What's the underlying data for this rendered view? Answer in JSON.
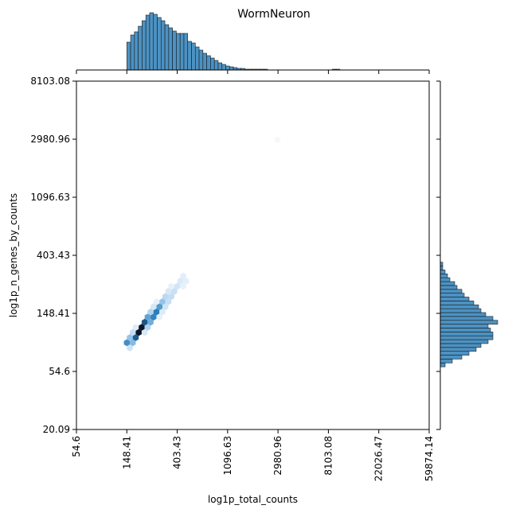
{
  "chart_data": {
    "type": "hexbin-joint",
    "title": "WormNeuron",
    "xlabel": "log1p_total_counts",
    "ylabel": "log1p_n_genes_by_counts",
    "x_scale": "log",
    "y_scale": "log",
    "xlim": [
      54.6,
      59874.14
    ],
    "ylim": [
      20.09,
      8103.08
    ],
    "x_ticks": [
      "54.6",
      "148.41",
      "403.43",
      "1096.63",
      "2980.96",
      "8103.08",
      "22026.47",
      "59874.14"
    ],
    "y_ticks": [
      "20.09",
      "54.6",
      "148.41",
      "403.43",
      "1096.63",
      "2980.96",
      "8103.08"
    ],
    "color": "#1f77b4",
    "hist_color": "#4c92c3",
    "x_marginal": {
      "bin_lo": 5.0,
      "bin_width": 0.0755,
      "counts": [
        35,
        44,
        48,
        55,
        62,
        69,
        72,
        70,
        66,
        62,
        57,
        53,
        49,
        46,
        46,
        46,
        36,
        34,
        29,
        25,
        21,
        18,
        15,
        12,
        9,
        7,
        5,
        4,
        3,
        2,
        2,
        1,
        1,
        1,
        1,
        1,
        1,
        0,
        0,
        0,
        0,
        0,
        0,
        0,
        0,
        0,
        0,
        0,
        0,
        0,
        0,
        0,
        0,
        0,
        1,
        1,
        0
      ]
    },
    "y_marginal": {
      "bin_lo": 4.08,
      "bin_width": 0.0667,
      "counts": [
        2,
        5,
        9,
        12,
        15,
        17,
        20,
        22,
        22,
        21,
        20,
        24,
        22,
        19,
        17,
        16,
        14,
        12,
        10,
        9,
        7,
        6,
        4,
        3,
        2,
        1,
        1
      ]
    },
    "hexbin": {
      "y_vs_x": "y ≈ x - 0.55 (log scale)",
      "x_range": [
        4.95,
        6.65
      ],
      "peak_x": 5.25,
      "outlier": [
        7.99,
        7.99
      ]
    }
  }
}
